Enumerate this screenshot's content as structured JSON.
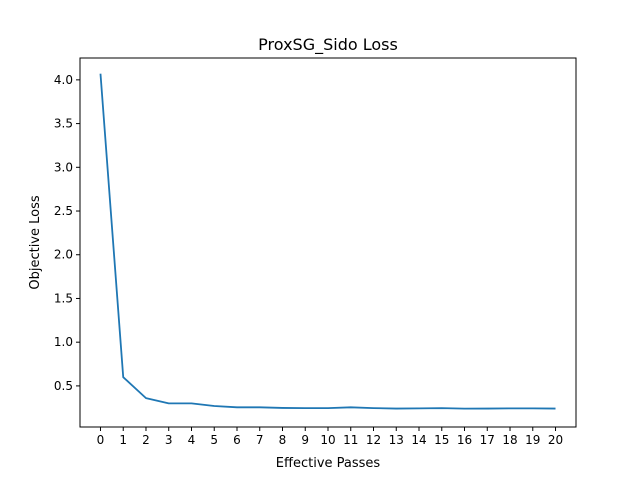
{
  "chart_data": {
    "type": "line",
    "title": "ProxSG_Sido Loss",
    "xlabel": "Effective Passes",
    "ylabel": "Objective Loss",
    "x": [
      0,
      1,
      2,
      3,
      4,
      5,
      6,
      7,
      8,
      9,
      10,
      11,
      12,
      13,
      14,
      15,
      16,
      17,
      18,
      19,
      20
    ],
    "series": [
      {
        "values": [
          4.07,
          0.6,
          0.36,
          0.3,
          0.3,
          0.27,
          0.255,
          0.255,
          0.248,
          0.246,
          0.246,
          0.255,
          0.246,
          0.241,
          0.243,
          0.246,
          0.24,
          0.241,
          0.243,
          0.243,
          0.241
        ],
        "color": "#1f77b4"
      }
    ],
    "xlim": [
      -0.9,
      20.9
    ],
    "ylim": [
      0.03,
      4.25
    ],
    "xticks": [
      "0",
      "1",
      "2",
      "3",
      "4",
      "5",
      "6",
      "7",
      "8",
      "9",
      "10",
      "11",
      "12",
      "13",
      "14",
      "15",
      "16",
      "17",
      "18",
      "19",
      "20"
    ],
    "yticks": [
      {
        "value": 0.5,
        "label": "0.5"
      },
      {
        "value": 1.0,
        "label": "1.0"
      },
      {
        "value": 1.5,
        "label": "1.5"
      },
      {
        "value": 2.0,
        "label": "2.0"
      },
      {
        "value": 2.5,
        "label": "2.5"
      },
      {
        "value": 3.0,
        "label": "3.0"
      },
      {
        "value": 3.5,
        "label": "3.5"
      },
      {
        "value": 4.0,
        "label": "4.0"
      }
    ],
    "grid": false,
    "legend": "none"
  }
}
